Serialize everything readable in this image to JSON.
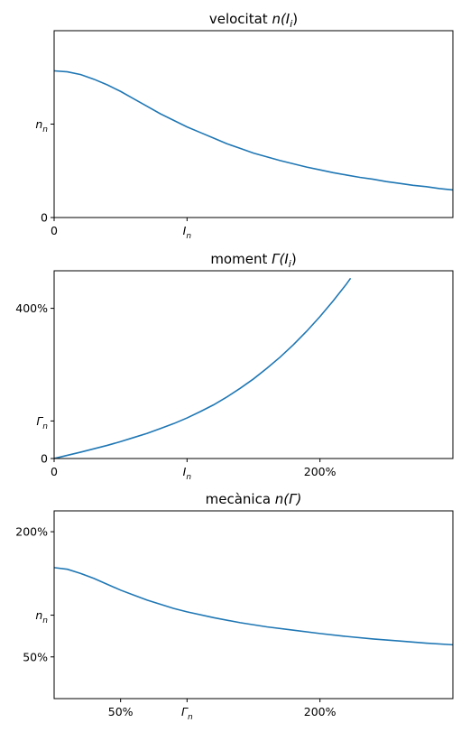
{
  "chart_data": [
    {
      "type": "line",
      "title_text": "velocitat ",
      "title_math": "n(I",
      "title_sub": "i",
      "title_end": ")",
      "xlim": [
        0,
        3
      ],
      "ylim": [
        0,
        2.0
      ],
      "x_ticks": [
        {
          "value": 0,
          "text": "0"
        },
        {
          "value": 1,
          "text": "I",
          "sub": "n"
        }
      ],
      "y_ticks": [
        {
          "value": 0,
          "text": "0"
        },
        {
          "value": 1,
          "text": "n",
          "sub": "n"
        }
      ],
      "series": [
        {
          "color": "#1f77b4",
          "x": [
            0,
            0.1,
            0.2,
            0.3,
            0.4,
            0.5,
            0.6,
            0.7,
            0.8,
            0.9,
            1.0,
            1.1,
            1.2,
            1.3,
            1.4,
            1.5,
            1.6,
            1.7,
            1.8,
            1.9,
            2.0,
            2.1,
            2.2,
            2.3,
            2.4,
            2.5,
            2.6,
            2.7,
            2.8,
            2.9,
            3.0
          ],
          "y": [
            1.57,
            1.56,
            1.53,
            1.48,
            1.42,
            1.35,
            1.27,
            1.19,
            1.11,
            1.04,
            0.97,
            0.91,
            0.85,
            0.79,
            0.74,
            0.69,
            0.65,
            0.61,
            0.575,
            0.54,
            0.51,
            0.48,
            0.455,
            0.43,
            0.41,
            0.385,
            0.365,
            0.345,
            0.33,
            0.31,
            0.295
          ]
        }
      ]
    },
    {
      "type": "line",
      "title_text": "moment ",
      "title_math": "Γ(I",
      "title_sub": "i",
      "title_end": ")",
      "xlim": [
        0,
        3
      ],
      "ylim": [
        0,
        5.0
      ],
      "x_ticks": [
        {
          "value": 0,
          "text": "0"
        },
        {
          "value": 1,
          "text": "I",
          "sub": "n"
        },
        {
          "value": 2,
          "text": "200%"
        }
      ],
      "y_ticks": [
        {
          "value": 0,
          "text": "0"
        },
        {
          "value": 1,
          "text": "Γ",
          "sub": "n"
        },
        {
          "value": 4,
          "text": "400%"
        }
      ],
      "series": [
        {
          "color": "#1f77b4",
          "x": [
            0,
            0.1,
            0.2,
            0.3,
            0.4,
            0.5,
            0.6,
            0.7,
            0.8,
            0.9,
            1.0,
            1.1,
            1.2,
            1.3,
            1.4,
            1.5,
            1.6,
            1.7,
            1.8,
            1.9,
            2.0,
            2.1,
            2.2,
            2.23
          ],
          "y": [
            0,
            0.085,
            0.17,
            0.26,
            0.35,
            0.45,
            0.56,
            0.67,
            0.8,
            0.93,
            1.08,
            1.25,
            1.43,
            1.64,
            1.87,
            2.12,
            2.4,
            2.7,
            3.03,
            3.39,
            3.78,
            4.2,
            4.65,
            4.8
          ]
        }
      ]
    },
    {
      "type": "line",
      "title_text": "mecànica ",
      "title_math": "n(Γ)",
      "title_sub": "",
      "title_end": "",
      "xlim": [
        0,
        3
      ],
      "ylim": [
        0,
        2.25
      ],
      "x_ticks": [
        {
          "value": 0.5,
          "text": "50%"
        },
        {
          "value": 1,
          "text": "Γ",
          "sub": "n"
        },
        {
          "value": 2,
          "text": "200%"
        }
      ],
      "y_ticks": [
        {
          "value": 0.5,
          "text": "50%"
        },
        {
          "value": 1,
          "text": "n",
          "sub": "n"
        },
        {
          "value": 2,
          "text": "200%"
        }
      ],
      "series": [
        {
          "color": "#1f77b4",
          "x": [
            0,
            0.1,
            0.2,
            0.3,
            0.4,
            0.5,
            0.6,
            0.7,
            0.8,
            0.9,
            1.0,
            1.2,
            1.4,
            1.6,
            1.8,
            2.0,
            2.2,
            2.4,
            2.6,
            2.8,
            3.0
          ],
          "y": [
            1.57,
            1.55,
            1.5,
            1.44,
            1.37,
            1.3,
            1.24,
            1.18,
            1.13,
            1.08,
            1.04,
            0.97,
            0.91,
            0.86,
            0.82,
            0.78,
            0.745,
            0.715,
            0.69,
            0.665,
            0.645
          ]
        }
      ]
    }
  ]
}
